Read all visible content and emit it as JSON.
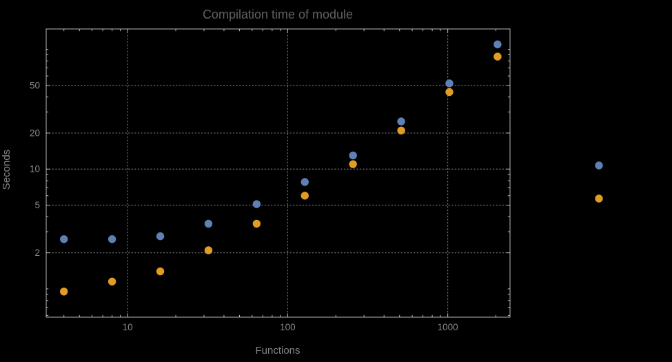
{
  "chart_data": {
    "type": "scatter",
    "title": "Compilation time of module",
    "xlabel": "Functions",
    "ylabel": "Seconds",
    "xscale": "log",
    "yscale": "log",
    "grid": "dotted",
    "x": [
      4,
      8,
      16,
      32,
      64,
      128,
      256,
      512,
      1024,
      2048
    ],
    "series": [
      {
        "name": "blue",
        "color": "#5e81b5",
        "values": [
          2.6,
          2.6,
          2.75,
          3.5,
          5.1,
          7.8,
          13,
          25,
          52,
          110
        ]
      },
      {
        "name": "orange",
        "color": "#e19c24",
        "values": [
          0.95,
          1.15,
          1.4,
          2.1,
          3.5,
          6.0,
          11,
          21,
          44,
          87
        ]
      }
    ],
    "x_ticks": [
      10,
      100,
      1000
    ],
    "y_ticks": [
      2,
      5,
      10,
      20,
      50
    ],
    "xlim": [
      3.1,
      2450
    ],
    "ylim": [
      0.58,
      148
    ],
    "legend": {
      "position": "right-of-frame",
      "markers": [
        {
          "series": "blue"
        },
        {
          "series": "orange"
        }
      ]
    }
  },
  "colors": {
    "background": "#000000",
    "frame": "#b9b9b9",
    "grid": "#8f8f8f",
    "title_text": "#5d6166",
    "tick_text": "#8a8a8a",
    "axis_label_text": "#848689",
    "series_blue": "#5e81b5",
    "series_orange": "#e19c24"
  }
}
